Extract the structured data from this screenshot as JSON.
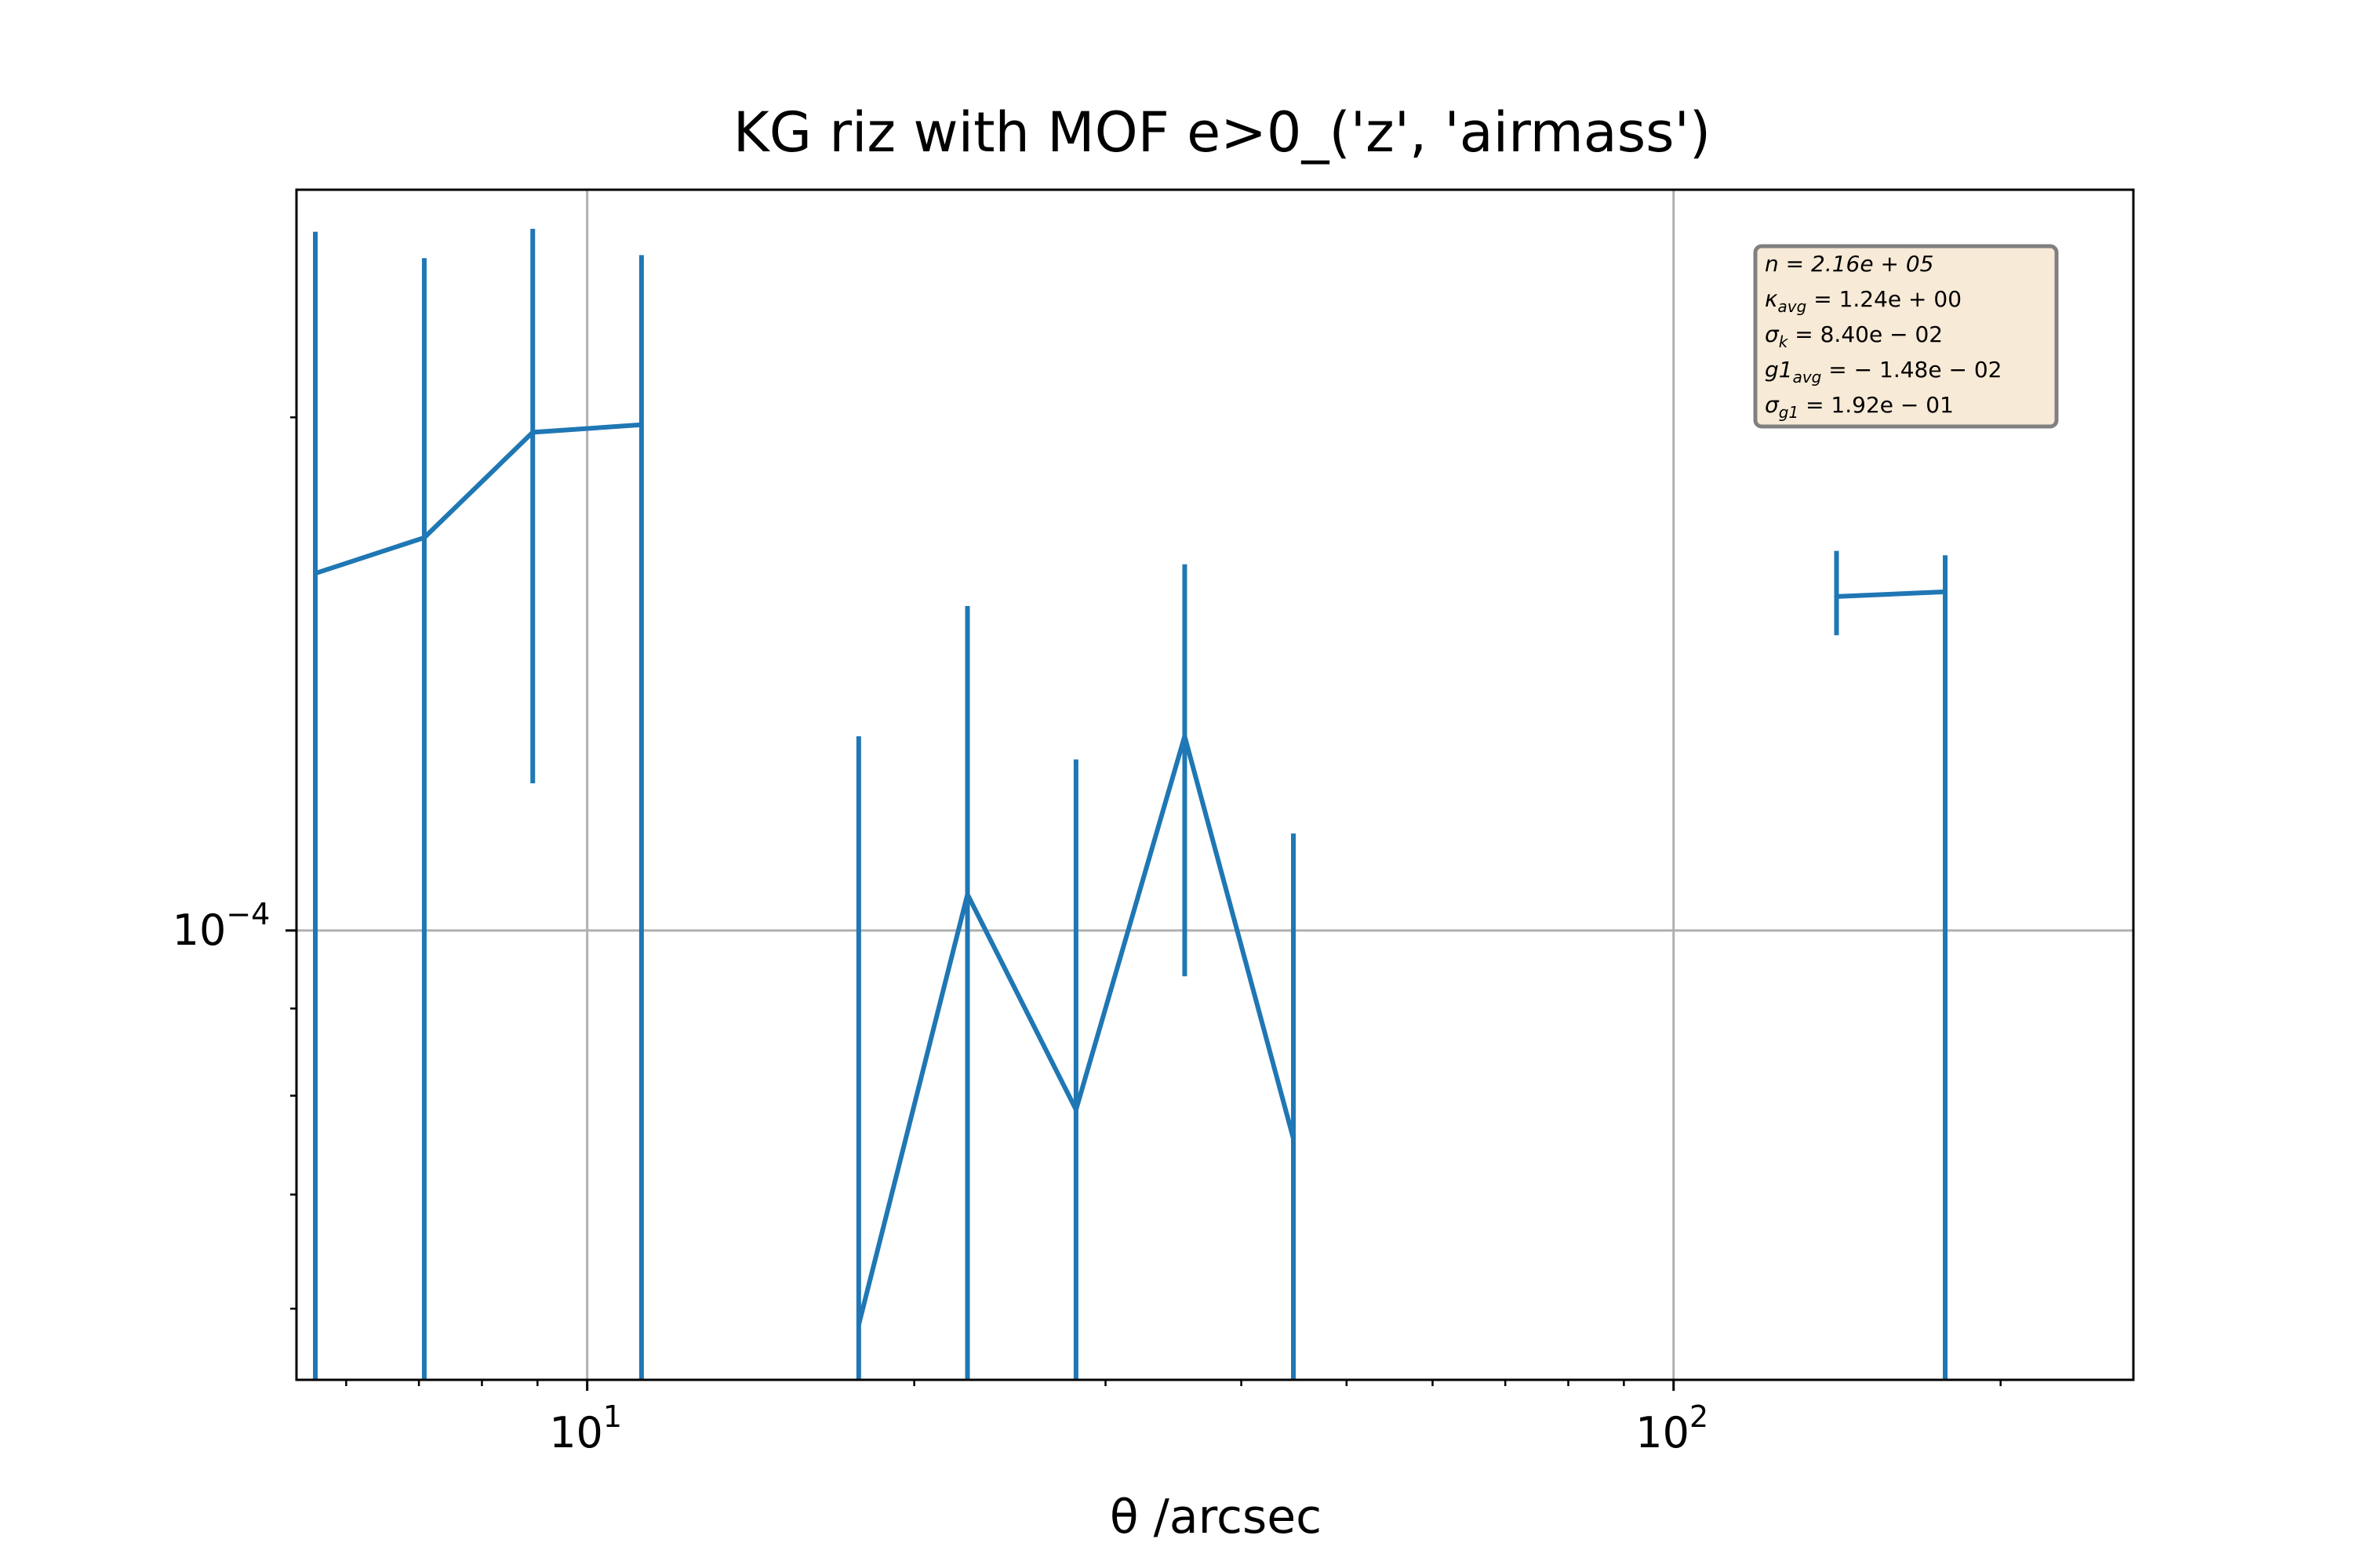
{
  "chart_data": {
    "type": "line",
    "title": "KG riz with MOF e>0_('z', 'airmass')",
    "xlabel": "θ /arcsec",
    "ylabel": "",
    "xscale": "log",
    "yscale": "log",
    "xlim": [
      5.4,
      265
    ],
    "ylim": [
      5.45e-05,
      0.000272
    ],
    "grid": true,
    "line_color": "#1f77b4",
    "x_ticks": [
      {
        "base": "10",
        "exp": "1",
        "value": 10
      },
      {
        "base": "10",
        "exp": "2",
        "value": 100
      }
    ],
    "y_ticks": [
      {
        "base": "10",
        "exp": "−4",
        "value": 0.0001
      }
    ],
    "series": [
      {
        "segments": [
          {
            "x": [
              5.62,
              7.08,
              8.91,
              11.22
            ],
            "y": [
              0.000162,
              0.00017,
              0.000196,
              0.000198
            ],
            "err_low": [
              5.45e-05,
              5.45e-05,
              0.000122,
              5.45e-05
            ],
            "err_high": [
              0.000257,
              0.000248,
              0.000258,
              0.000249
            ]
          },
          {
            "x": [
              17.78,
              22.39,
              28.18,
              35.48,
              44.67
            ],
            "y": [
              5.87e-05,
              0.000105,
              7.85e-05,
              0.00013,
              7.55e-05
            ],
            "err_low": [
              5.45e-05,
              5.45e-05,
              5.45e-05,
              9.4e-05,
              5.45e-05
            ],
            "err_high": [
              0.00013,
              0.000155,
              0.000126,
              0.000164,
              0.000114
            ]
          },
          {
            "x": [
              141.25,
              177.83
            ],
            "y": [
              0.000157,
              0.000158
            ],
            "err_low": [
              0.000149,
              5.45e-05
            ],
            "err_high": [
              0.000167,
              0.000166
            ]
          }
        ]
      }
    ],
    "stats_box": {
      "position": "top-right",
      "facecolor": "#f7ead6",
      "lines": [
        {
          "main": "n = 2.16e + 05",
          "sub": ""
        },
        {
          "main": "κ",
          "sub": "avg",
          "rest": " = 1.24e + 00"
        },
        {
          "main": "σ",
          "sub": "k",
          "rest": " = 8.40e − 02"
        },
        {
          "main": "g1",
          "sub": "avg",
          "rest": " = − 1.48e − 02"
        },
        {
          "main": "σ",
          "sub": "g1",
          "rest": " = 1.92e − 01"
        }
      ]
    }
  }
}
